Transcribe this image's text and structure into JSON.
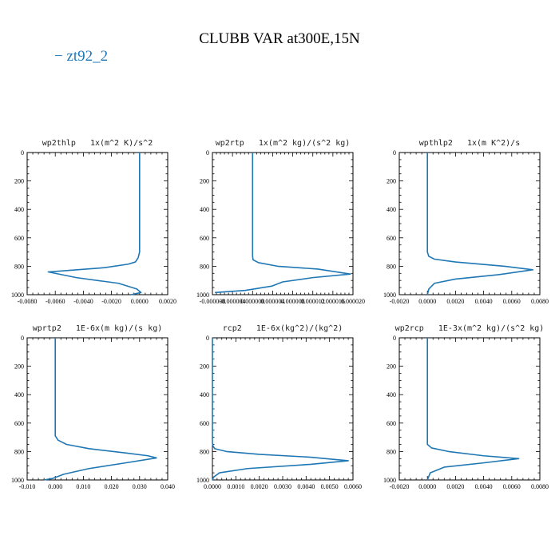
{
  "figure": {
    "title": "CLUBB VAR at300E,15N",
    "legend": [
      {
        "name": "zt92_2",
        "color": "#1f77b4"
      }
    ]
  },
  "chart_data": [
    {
      "type": "line",
      "title": "wp2thlp   1x(m^2 K)/s^2",
      "xlim": [
        -0.008,
        0.002
      ],
      "ylim": [
        1000,
        0
      ],
      "xticks": [
        "-0.0080",
        "-0.0060",
        "-0.0040",
        "-0.0020",
        "0.0000",
        "0.0020"
      ],
      "xtick_values": [
        -0.008,
        -0.006,
        -0.004,
        -0.002,
        0.0,
        0.002
      ],
      "yticks": [
        "0",
        "200",
        "400",
        "600",
        "800",
        "1000"
      ],
      "ytick_values": [
        0,
        200,
        400,
        600,
        800,
        1000
      ],
      "series": [
        {
          "x": [
            0.0,
            0.0,
            -0.0001,
            -0.0002,
            -0.0003,
            -0.0008,
            -0.0025,
            -0.0065,
            -0.0045,
            -0.0015,
            -0.0002,
            0.0001,
            -0.0006
          ],
          "y": [
            0,
            700,
            740,
            755,
            770,
            785,
            810,
            840,
            880,
            920,
            960,
            985,
            1000
          ]
        }
      ]
    },
    {
      "type": "line",
      "title": "wp2rtp   1x(m^2 kg)/(s^2 kg)",
      "xlim": [
        -8e-06,
        2e-05
      ],
      "ylim": [
        1000,
        0
      ],
      "xticks": [
        "-0.000008",
        "-0.000004",
        "0.000000",
        "0.000004",
        "0.000008",
        "0.000012",
        "0.000016",
        "0.000020"
      ],
      "xtick_values": [
        -8e-06,
        -4e-06,
        0.0,
        4e-06,
        8e-06,
        1.2e-05,
        1.6e-05,
        2e-05
      ],
      "yticks": [
        "0",
        "200",
        "400",
        "600",
        "800",
        "1000"
      ],
      "ytick_values": [
        0,
        200,
        400,
        600,
        800,
        1000
      ],
      "series": [
        {
          "x": [
            0.0,
            0.0,
            1e-07,
            1.2e-06,
            5e-06,
            1.3e-05,
            1.95e-05,
            1.2e-05,
            6e-06,
            3.8e-06,
            -1.5e-06,
            -7.5e-06
          ],
          "y": [
            0,
            730,
            755,
            775,
            800,
            820,
            855,
            880,
            910,
            940,
            970,
            985
          ]
        }
      ]
    },
    {
      "type": "line",
      "title": "wpthlp2   1x(m K^2)/s",
      "xlim": [
        -0.002,
        0.008
      ],
      "ylim": [
        1000,
        0
      ],
      "xticks": [
        "-0.0020",
        "0.0000",
        "0.0020",
        "0.0040",
        "0.0060",
        "0.0080"
      ],
      "xtick_values": [
        -0.002,
        0.0,
        0.002,
        0.004,
        0.006,
        0.008
      ],
      "yticks": [
        "0",
        "200",
        "400",
        "600",
        "800",
        "1000"
      ],
      "ytick_values": [
        0,
        200,
        400,
        600,
        800,
        1000
      ],
      "series": [
        {
          "x": [
            0.0,
            0.0,
            0.0001,
            0.0005,
            0.002,
            0.0055,
            0.0075,
            0.005,
            0.002,
            0.0005,
            0.0001,
            0.0
          ],
          "y": [
            0,
            700,
            730,
            750,
            770,
            800,
            825,
            860,
            890,
            920,
            960,
            1000
          ]
        }
      ]
    },
    {
      "type": "line",
      "title": "wprtp2   1E-6x(m kg)/(s kg)",
      "xlim": [
        -0.01,
        0.04
      ],
      "ylim": [
        1000,
        0
      ],
      "xticks": [
        "-0.010",
        "0.000",
        "0.010",
        "0.020",
        "0.030",
        "0.040"
      ],
      "xtick_values": [
        -0.01,
        0.0,
        0.01,
        0.02,
        0.03,
        0.04
      ],
      "yticks": [
        "0",
        "200",
        "400",
        "600",
        "800",
        "1000"
      ],
      "ytick_values": [
        0,
        200,
        400,
        600,
        800,
        1000
      ],
      "series": [
        {
          "x": [
            0.0,
            0.0,
            0.001,
            0.004,
            0.012,
            0.025,
            0.033,
            0.036,
            0.025,
            0.012,
            0.003,
            -0.001,
            -0.004
          ],
          "y": [
            0,
            690,
            720,
            750,
            780,
            810,
            830,
            845,
            880,
            920,
            960,
            990,
            1000
          ]
        }
      ]
    },
    {
      "type": "line",
      "title": "rcp2   1E-6x(kg^2)/(kg^2)",
      "xlim": [
        0.0,
        0.006
      ],
      "ylim": [
        1000,
        0
      ],
      "xticks": [
        "0.0000",
        "0.0010",
        "0.0020",
        "0.0030",
        "0.0040",
        "0.0050",
        "0.0060"
      ],
      "xtick_values": [
        0.0,
        0.001,
        0.002,
        0.003,
        0.004,
        0.005,
        0.006
      ],
      "yticks": [
        "0",
        "200",
        "400",
        "600",
        "800",
        "1000"
      ],
      "ytick_values": [
        0,
        200,
        400,
        600,
        800,
        1000
      ],
      "series": [
        {
          "x": [
            0.0,
            0.0,
            2e-05,
            0.0001,
            0.0006,
            0.002,
            0.0042,
            0.0058,
            0.0042,
            0.0015,
            0.0003,
            5e-05,
            0.0
          ],
          "y": [
            0,
            740,
            760,
            780,
            800,
            820,
            840,
            865,
            890,
            920,
            950,
            980,
            1000
          ]
        }
      ]
    },
    {
      "type": "line",
      "title": "wp2rcp   1E-3x(m^2 kg)/(s^2 kg)",
      "xlim": [
        -0.002,
        0.008
      ],
      "ylim": [
        1000,
        0
      ],
      "xticks": [
        "-0.0020",
        "0.0000",
        "0.0020",
        "0.0040",
        "0.0060",
        "0.0080"
      ],
      "xtick_values": [
        -0.002,
        0.0,
        0.002,
        0.004,
        0.006,
        0.008
      ],
      "yticks": [
        "0",
        "200",
        "400",
        "600",
        "800",
        "1000"
      ],
      "ytick_values": [
        0,
        200,
        400,
        600,
        800,
        1000
      ],
      "series": [
        {
          "x": [
            0.0,
            0.0,
            0.0003,
            0.0015,
            0.004,
            0.0065,
            0.004,
            0.0012,
            0.0002,
            0.0
          ],
          "y": [
            0,
            750,
            775,
            800,
            830,
            850,
            880,
            910,
            950,
            1000
          ]
        }
      ]
    }
  ]
}
